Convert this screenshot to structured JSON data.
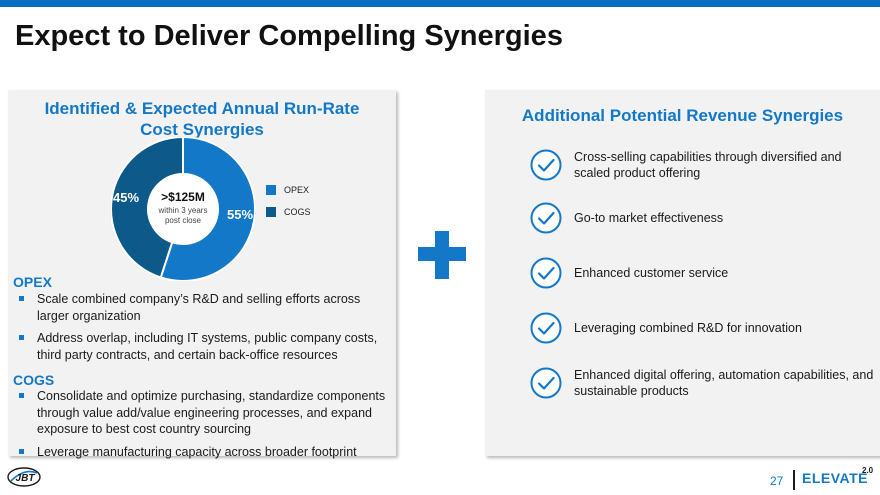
{
  "title": "Expect to Deliver Compelling Synergies",
  "left": {
    "heading_line1": "Identified & Expected Annual Run-Rate",
    "heading_line2": "Cost Synergies",
    "chart_data": {
      "type": "pie",
      "donut": true,
      "categories": [
        "OPEX",
        "COGS"
      ],
      "values": [
        55,
        45
      ],
      "slice_labels": [
        "55%",
        "45%"
      ],
      "colors": [
        "#1478c8",
        "#0d5a8a"
      ],
      "center_value": ">$125M",
      "center_caption_line1": "within 3 years",
      "center_caption_line2": "post close",
      "legend": {
        "placement": "right"
      }
    },
    "opex": {
      "heading": "OPEX",
      "bullets": [
        "Scale combined company’s R&D and selling efforts across larger organization",
        "Address overlap, including IT systems, public company costs, third party contracts, and certain back-office resources"
      ]
    },
    "cogs": {
      "heading": "COGS",
      "bullets": [
        "Consolidate and optimize purchasing, standardize components through value add/value engineering processes, and expand exposure to best cost country sourcing",
        "Leverage manufacturing capacity across broader footprint"
      ]
    }
  },
  "right": {
    "heading": "Additional Potential Revenue Synergies",
    "items": [
      "Cross-selling capabilities through diversified and scaled product offering",
      "Go-to market effectiveness",
      "Enhanced customer service",
      "Leveraging combined R&D for innovation",
      "Enhanced digital offering, automation capabilities, and sustainable products"
    ]
  },
  "footer": {
    "logo_text": "JBT",
    "page_number": "27",
    "brand": "ELEVATE",
    "brand_sup": "2.0"
  },
  "colors": {
    "accent": "#1478c8",
    "dark_blue": "#0d5a8a",
    "top_bar": "#0a6fc2"
  }
}
